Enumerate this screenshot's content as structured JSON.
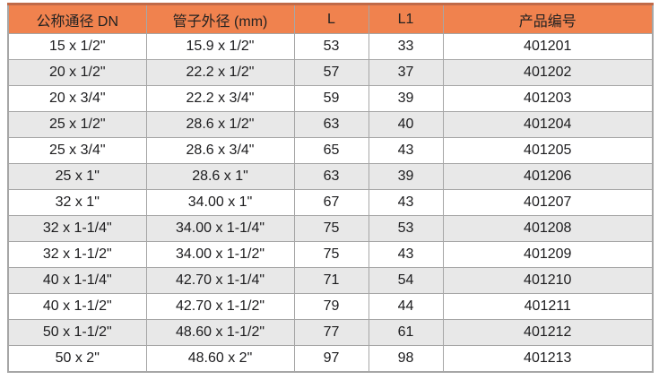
{
  "table": {
    "columns": [
      "公称通径 DN",
      "管子外径 (mm)",
      "L",
      "L1",
      "产品编号"
    ],
    "rows": [
      [
        "15 x 1/2\"",
        "15.9 x 1/2\"",
        "53",
        "33",
        "401201"
      ],
      [
        "20 x 1/2\"",
        "22.2 x 1/2\"",
        "57",
        "37",
        "401202"
      ],
      [
        "20 x 3/4\"",
        "22.2 x 3/4\"",
        "59",
        "39",
        "401203"
      ],
      [
        "25 x 1/2\"",
        "28.6 x 1/2\"",
        "63",
        "40",
        "401204"
      ],
      [
        "25 x 3/4\"",
        "28.6 x 3/4\"",
        "65",
        "43",
        "401205"
      ],
      [
        "25 x 1\"",
        "28.6 x 1\"",
        "63",
        "39",
        "401206"
      ],
      [
        "32 x 1\"",
        "34.00 x 1\"",
        "67",
        "43",
        "401207"
      ],
      [
        "32 x 1-1/4\"",
        "34.00 x 1-1/4\"",
        "75",
        "53",
        "401208"
      ],
      [
        "32 x 1-1/2\"",
        "34.00 x 1-1/2\"",
        "75",
        "43",
        "401209"
      ],
      [
        "40 x 1-1/4\"",
        "42.70 x 1-1/4\"",
        "71",
        "54",
        "401210"
      ],
      [
        "40 x 1-1/2\"",
        "42.70 x 1-1/2\"",
        "79",
        "44",
        "401211"
      ],
      [
        "50 x 1-1/2\"",
        "48.60 x 1-1/2\"",
        "77",
        "61",
        "401212"
      ],
      [
        "50 x 2\"",
        "48.60 x 2\"",
        "97",
        "98",
        "401213"
      ]
    ],
    "colors": {
      "header_bg": "#F0824E",
      "header_top_border": "#C06A48",
      "row_alt_bg": "#E8E8E8",
      "row_bg": "#FFFFFF",
      "border": "#A6A6A6",
      "text": "#1C1C1E"
    }
  }
}
